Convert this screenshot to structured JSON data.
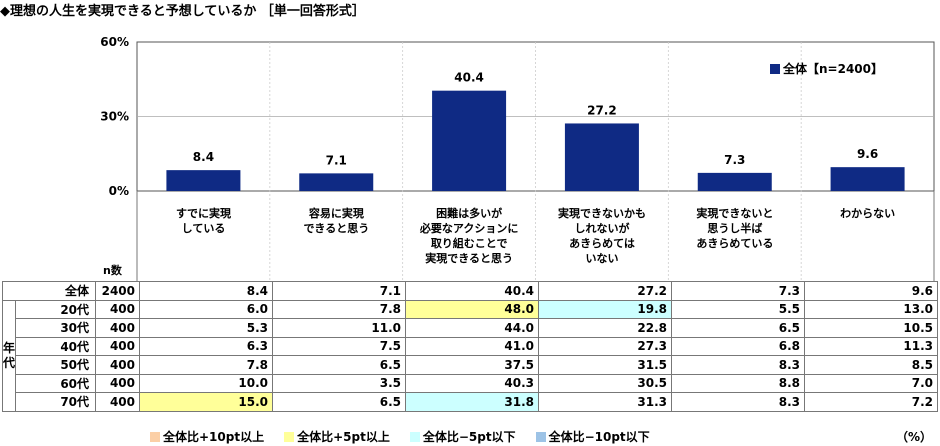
{
  "title": "◆理想の人生を実現できると予想しているか ［単一回答形式］",
  "colors": {
    "bar": "#0f2a84",
    "plus10": "#fbcfa6",
    "plus5": "#ffff99",
    "minus5": "#ccffff",
    "minus10": "#9dc3e6"
  },
  "chart_data": {
    "type": "bar",
    "categories": [
      [
        "すでに実現",
        "している"
      ],
      [
        "容易に実現",
        "できると思う"
      ],
      [
        "困難は多いが",
        "必要なアクションに",
        "取り組むことで",
        "実現できると思う"
      ],
      [
        "実現できないかも",
        "しれないが",
        "あきらめては",
        "いない"
      ],
      [
        "実現できないと",
        "思うし半ば",
        "あきらめている"
      ],
      [
        "わからない"
      ]
    ],
    "series": [
      {
        "name": "全体【n=2400】",
        "values": [
          8.4,
          7.1,
          40.4,
          27.2,
          7.3,
          9.6
        ]
      }
    ],
    "value_labels": [
      "8.4",
      "7.1",
      "40.4",
      "27.2",
      "7.3",
      "9.6"
    ],
    "ylim": [
      0,
      60
    ],
    "yticks": [
      "0%",
      "30%",
      "60%"
    ],
    "legend": "top-right"
  },
  "table": {
    "n_header": "n数",
    "group_label": [
      "年",
      "代"
    ],
    "rows": [
      {
        "label": "全体",
        "n": "2400",
        "values": [
          "8.4",
          "7.1",
          "40.4",
          "27.2",
          "7.3",
          "9.6"
        ],
        "hl": [
          "",
          "",
          "",
          "",
          "",
          ""
        ]
      },
      {
        "label": "20代",
        "n": "400",
        "values": [
          "6.0",
          "7.8",
          "48.0",
          "19.8",
          "5.5",
          "13.0"
        ],
        "hl": [
          "",
          "",
          "plus5",
          "minus5",
          "",
          ""
        ]
      },
      {
        "label": "30代",
        "n": "400",
        "values": [
          "5.3",
          "11.0",
          "44.0",
          "22.8",
          "6.5",
          "10.5"
        ],
        "hl": [
          "",
          "",
          "",
          "",
          "",
          ""
        ]
      },
      {
        "label": "40代",
        "n": "400",
        "values": [
          "6.3",
          "7.5",
          "41.0",
          "27.3",
          "6.8",
          "11.3"
        ],
        "hl": [
          "",
          "",
          "",
          "",
          "",
          ""
        ]
      },
      {
        "label": "50代",
        "n": "400",
        "values": [
          "7.8",
          "6.5",
          "37.5",
          "31.5",
          "8.3",
          "8.5"
        ],
        "hl": [
          "",
          "",
          "",
          "",
          "",
          ""
        ]
      },
      {
        "label": "60代",
        "n": "400",
        "values": [
          "10.0",
          "3.5",
          "40.3",
          "30.5",
          "8.8",
          "7.0"
        ],
        "hl": [
          "",
          "",
          "",
          "",
          "",
          ""
        ]
      },
      {
        "label": "70代",
        "n": "400",
        "values": [
          "15.0",
          "6.5",
          "31.8",
          "31.3",
          "8.3",
          "7.2"
        ],
        "hl": [
          "plus5",
          "",
          "minus5",
          "",
          "",
          ""
        ]
      }
    ]
  },
  "legend_items": [
    {
      "key": "plus10",
      "label": "全体比+10pt以上"
    },
    {
      "key": "plus5",
      "label": "全体比+5pt以上"
    },
    {
      "key": "minus5",
      "label": "全体比−5pt以下"
    },
    {
      "key": "minus10",
      "label": "全体比−10pt以下"
    }
  ],
  "unit": "（%）"
}
